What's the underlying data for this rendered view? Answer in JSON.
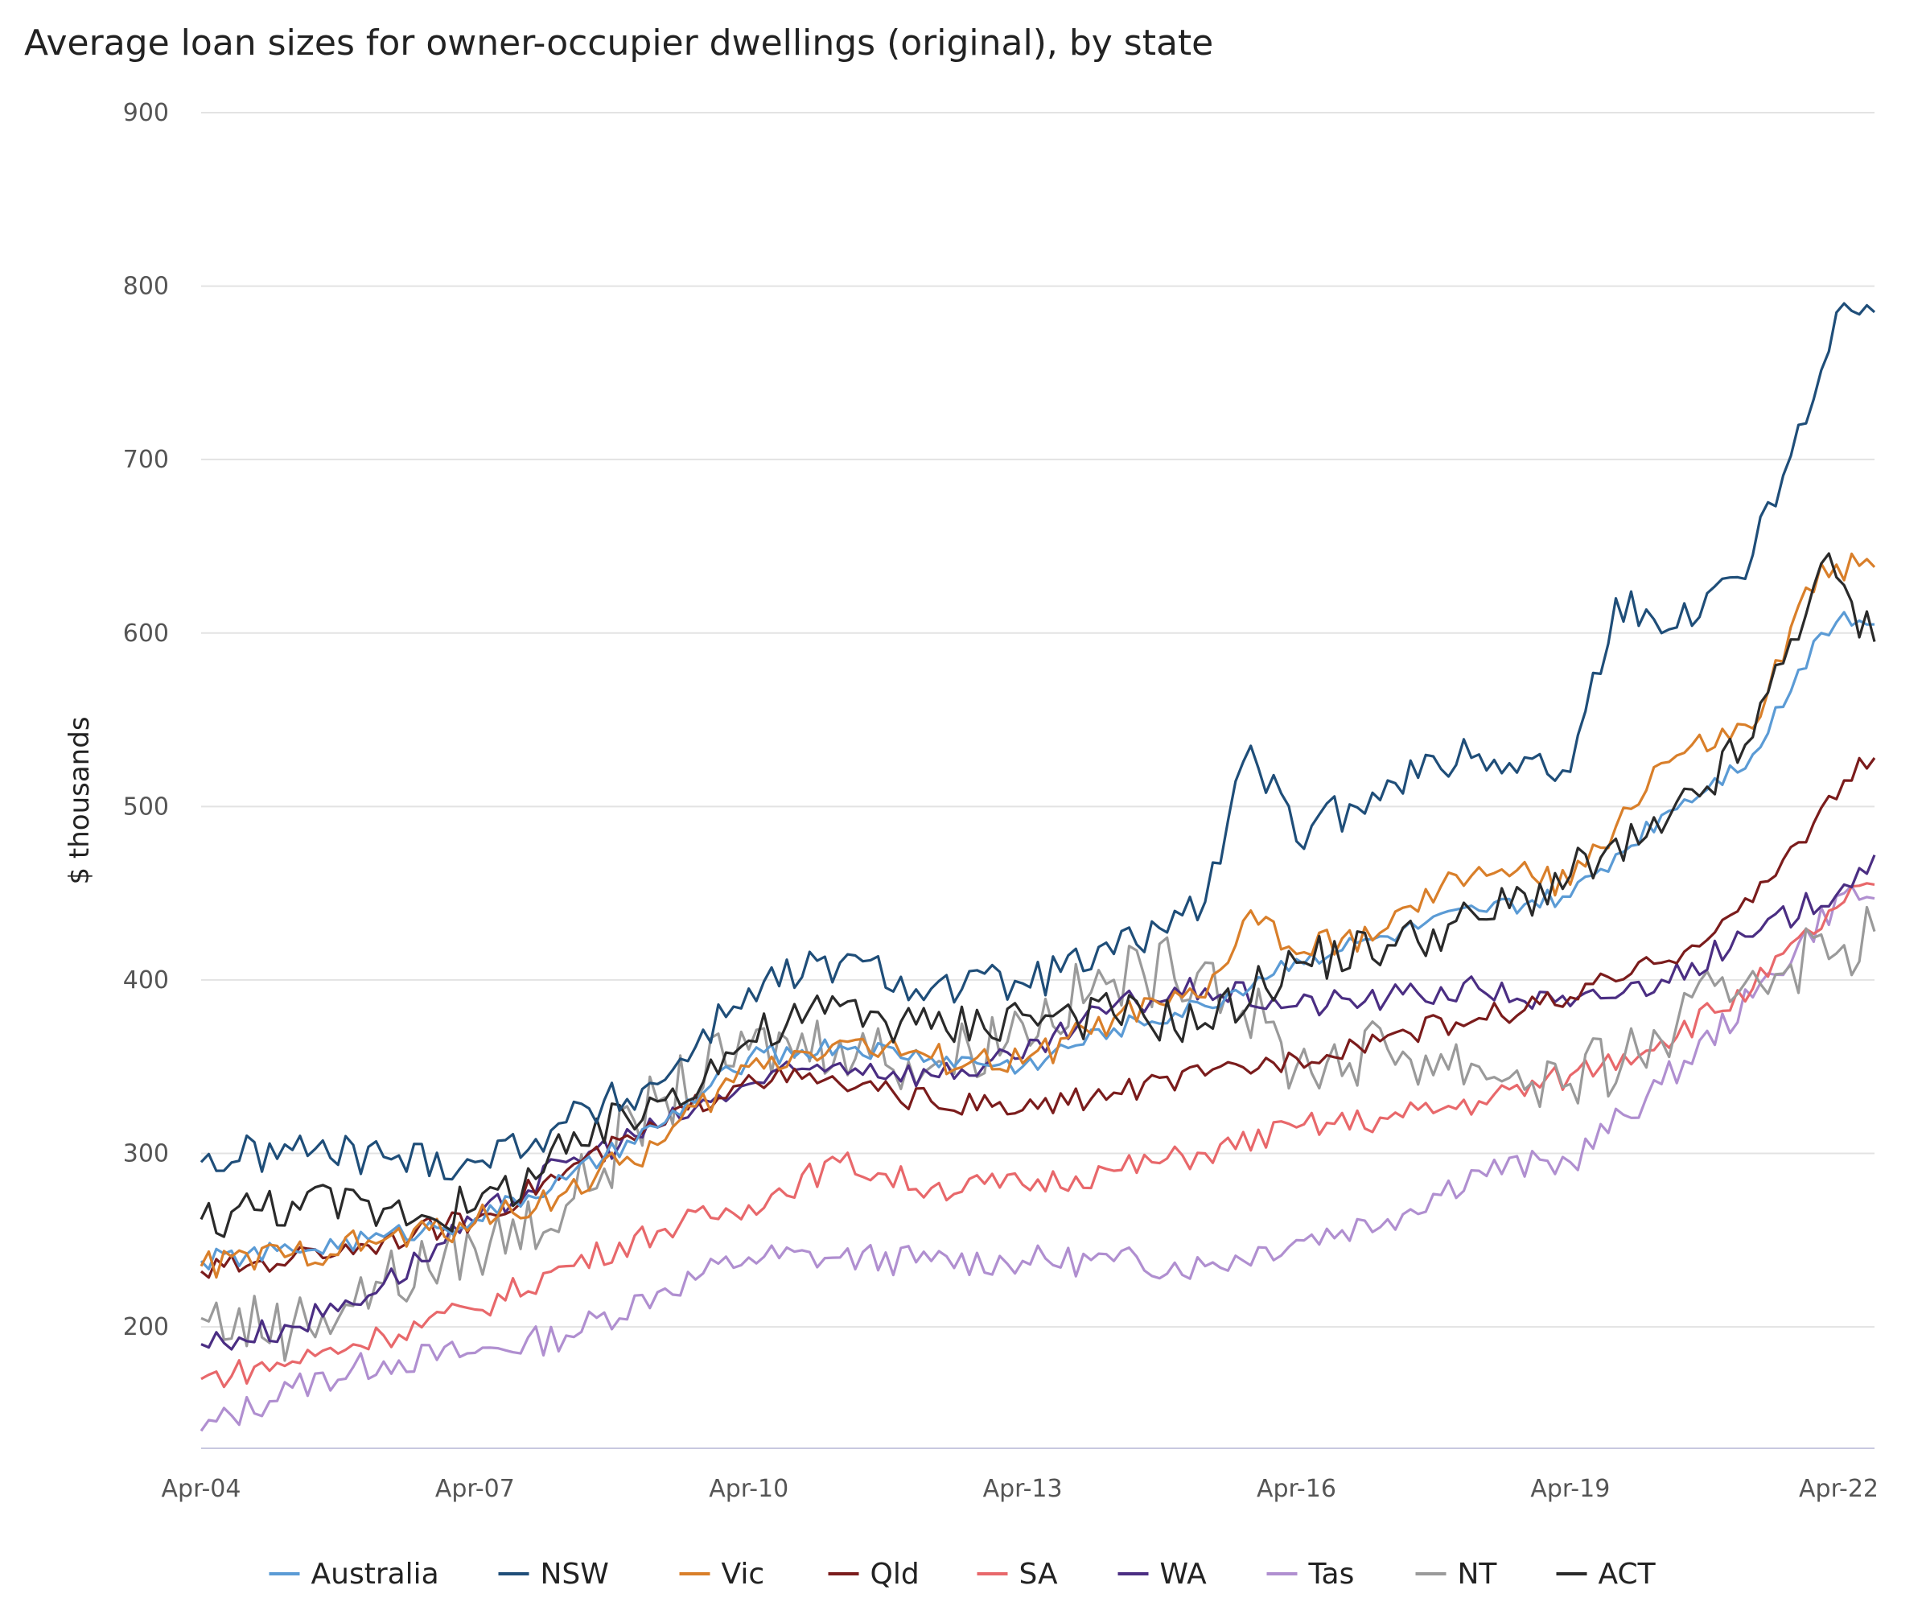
{
  "chart_data": {
    "type": "line",
    "title": "Average loan sizes for owner-occupier dwellings (original), by state",
    "xlabel": "",
    "ylabel": "$ thousands",
    "ylim": [
      130,
      900
    ],
    "yticks": [
      200,
      300,
      400,
      500,
      600,
      700,
      800,
      900
    ],
    "xticks": [
      "Apr-04",
      "Apr-07",
      "Apr-10",
      "Apr-13",
      "Apr-16",
      "Apr-19",
      "Apr-22"
    ],
    "x_range": [
      "2004-04",
      "2022-08"
    ],
    "grid": true,
    "legend": "bottom",
    "colors": {
      "Australia": "#5b9bd5",
      "NSW": "#1f4e79",
      "Vic": "#d97f2a",
      "Qld": "#7b1c1c",
      "SA": "#e8686b",
      "WA": "#4b2e83",
      "Tas": "#b08fd0",
      "NT": "#9a9a9a",
      "ACT": "#2a2a2a"
    },
    "series": [
      {
        "name": "Australia",
        "points": [
          [
            "2004-04",
            238
          ],
          [
            "2005-04",
            244
          ],
          [
            "2006-04",
            252
          ],
          [
            "2007-04",
            262
          ],
          [
            "2008-04",
            285
          ],
          [
            "2009-04",
            315
          ],
          [
            "2010-04",
            355
          ],
          [
            "2011-04",
            362
          ],
          [
            "2012-04",
            355
          ],
          [
            "2013-04",
            350
          ],
          [
            "2014-04",
            372
          ],
          [
            "2015-04",
            385
          ],
          [
            "2016-04",
            412
          ],
          [
            "2017-04",
            425
          ],
          [
            "2018-04",
            440
          ],
          [
            "2019-04",
            448
          ],
          [
            "2020-04",
            495
          ],
          [
            "2021-04",
            530
          ],
          [
            "2022-01",
            600
          ],
          [
            "2022-04",
            612
          ],
          [
            "2022-08",
            605
          ]
        ]
      },
      {
        "name": "NSW",
        "points": [
          [
            "2004-04",
            295
          ],
          [
            "2005-04",
            302
          ],
          [
            "2006-04",
            298
          ],
          [
            "2007-04",
            295
          ],
          [
            "2008-04",
            318
          ],
          [
            "2009-04",
            340
          ],
          [
            "2010-04",
            395
          ],
          [
            "2011-04",
            410
          ],
          [
            "2012-04",
            395
          ],
          [
            "2013-04",
            398
          ],
          [
            "2014-04",
            415
          ],
          [
            "2015-04",
            445
          ],
          [
            "2015-10",
            535
          ],
          [
            "2016-04",
            480
          ],
          [
            "2017-04",
            515
          ],
          [
            "2018-04",
            530
          ],
          [
            "2019-04",
            520
          ],
          [
            "2019-10",
            620
          ],
          [
            "2020-04",
            600
          ],
          [
            "2021-04",
            645
          ],
          [
            "2021-10",
            720
          ],
          [
            "2022-04",
            790
          ],
          [
            "2022-08",
            785
          ]
        ]
      },
      {
        "name": "Vic",
        "points": [
          [
            "2004-04",
            235
          ],
          [
            "2005-04",
            242
          ],
          [
            "2006-04",
            250
          ],
          [
            "2007-04",
            260
          ],
          [
            "2008-04",
            278
          ],
          [
            "2009-04",
            305
          ],
          [
            "2010-04",
            350
          ],
          [
            "2011-04",
            365
          ],
          [
            "2012-04",
            355
          ],
          [
            "2013-04",
            352
          ],
          [
            "2014-04",
            378
          ],
          [
            "2015-04",
            390
          ],
          [
            "2015-10",
            440
          ],
          [
            "2016-04",
            415
          ],
          [
            "2017-04",
            430
          ],
          [
            "2018-04",
            465
          ],
          [
            "2019-04",
            455
          ],
          [
            "2020-04",
            525
          ],
          [
            "2021-04",
            545
          ],
          [
            "2022-01",
            640
          ],
          [
            "2022-08",
            638
          ]
        ]
      },
      {
        "name": "Qld",
        "points": [
          [
            "2004-04",
            232
          ],
          [
            "2005-04",
            240
          ],
          [
            "2006-04",
            250
          ],
          [
            "2007-04",
            262
          ],
          [
            "2008-04",
            290
          ],
          [
            "2009-04",
            315
          ],
          [
            "2010-04",
            345
          ],
          [
            "2011-04",
            340
          ],
          [
            "2012-04",
            330
          ],
          [
            "2013-04",
            325
          ],
          [
            "2014-04",
            335
          ],
          [
            "2015-04",
            345
          ],
          [
            "2016-04",
            355
          ],
          [
            "2017-04",
            368
          ],
          [
            "2018-04",
            378
          ],
          [
            "2019-04",
            390
          ],
          [
            "2020-04",
            410
          ],
          [
            "2021-04",
            445
          ],
          [
            "2022-04",
            515
          ],
          [
            "2022-08",
            528
          ]
        ]
      },
      {
        "name": "SA",
        "points": [
          [
            "2004-04",
            170
          ],
          [
            "2005-04",
            180
          ],
          [
            "2006-04",
            195
          ],
          [
            "2007-04",
            210
          ],
          [
            "2008-04",
            235
          ],
          [
            "2009-04",
            255
          ],
          [
            "2010-04",
            270
          ],
          [
            "2011-04",
            295
          ],
          [
            "2012-04",
            280
          ],
          [
            "2013-04",
            282
          ],
          [
            "2014-04",
            290
          ],
          [
            "2015-04",
            300
          ],
          [
            "2016-04",
            315
          ],
          [
            "2017-04",
            320
          ],
          [
            "2018-04",
            330
          ],
          [
            "2019-04",
            345
          ],
          [
            "2020-04",
            365
          ],
          [
            "2021-04",
            395
          ],
          [
            "2022-04",
            445
          ],
          [
            "2022-08",
            455
          ]
        ]
      },
      {
        "name": "WA",
        "points": [
          [
            "2004-04",
            190
          ],
          [
            "2005-04",
            200
          ],
          [
            "2006-04",
            225
          ],
          [
            "2007-04",
            260
          ],
          [
            "2008-04",
            295
          ],
          [
            "2009-04",
            315
          ],
          [
            "2010-04",
            340
          ],
          [
            "2011-04",
            352
          ],
          [
            "2012-04",
            345
          ],
          [
            "2013-04",
            355
          ],
          [
            "2014-04",
            385
          ],
          [
            "2015-04",
            395
          ],
          [
            "2016-04",
            385
          ],
          [
            "2017-04",
            390
          ],
          [
            "2018-04",
            395
          ],
          [
            "2019-04",
            385
          ],
          [
            "2020-04",
            400
          ],
          [
            "2021-04",
            425
          ],
          [
            "2022-04",
            455
          ],
          [
            "2022-08",
            472
          ]
        ]
      },
      {
        "name": "Tas",
        "points": [
          [
            "2004-04",
            140
          ],
          [
            "2005-04",
            165
          ],
          [
            "2006-04",
            180
          ],
          [
            "2007-04",
            185
          ],
          [
            "2008-04",
            195
          ],
          [
            "2009-04",
            220
          ],
          [
            "2010-04",
            240
          ],
          [
            "2011-04",
            240
          ],
          [
            "2012-04",
            238
          ],
          [
            "2013-04",
            238
          ],
          [
            "2014-04",
            238
          ],
          [
            "2015-04",
            235
          ],
          [
            "2016-04",
            250
          ],
          [
            "2017-04",
            262
          ],
          [
            "2018-04",
            290
          ],
          [
            "2019-04",
            295
          ],
          [
            "2020-04",
            340
          ],
          [
            "2021-04",
            390
          ],
          [
            "2022-04",
            450
          ],
          [
            "2022-08",
            447
          ]
        ]
      },
      {
        "name": "NT",
        "points": [
          [
            "2004-04",
            205
          ],
          [
            "2005-04",
            200
          ],
          [
            "2006-04",
            225
          ],
          [
            "2007-04",
            245
          ],
          [
            "2008-04",
            270
          ],
          [
            "2009-04",
            330
          ],
          [
            "2010-04",
            360
          ],
          [
            "2011-04",
            365
          ],
          [
            "2012-04",
            350
          ],
          [
            "2013-04",
            375
          ],
          [
            "2014-04",
            400
          ],
          [
            "2015-04",
            410
          ],
          [
            "2016-04",
            350
          ],
          [
            "2017-04",
            360
          ],
          [
            "2018-04",
            350
          ],
          [
            "2019-04",
            340
          ],
          [
            "2020-04",
            365
          ],
          [
            "2021-04",
            405
          ],
          [
            "2022-04",
            420
          ],
          [
            "2022-08",
            428
          ]
        ]
      },
      {
        "name": "ACT",
        "points": [
          [
            "2004-04",
            262
          ],
          [
            "2005-04",
            272
          ],
          [
            "2006-04",
            268
          ],
          [
            "2007-04",
            268
          ],
          [
            "2008-04",
            300
          ],
          [
            "2009-04",
            330
          ],
          [
            "2010-04",
            365
          ],
          [
            "2011-04",
            385
          ],
          [
            "2012-04",
            372
          ],
          [
            "2013-04",
            380
          ],
          [
            "2014-04",
            380
          ],
          [
            "2015-04",
            375
          ],
          [
            "2016-04",
            410
          ],
          [
            "2017-04",
            420
          ],
          [
            "2018-04",
            435
          ],
          [
            "2019-04",
            460
          ],
          [
            "2020-04",
            485
          ],
          [
            "2021-04",
            540
          ],
          [
            "2022-01",
            640
          ],
          [
            "2022-08",
            595
          ]
        ]
      }
    ]
  }
}
